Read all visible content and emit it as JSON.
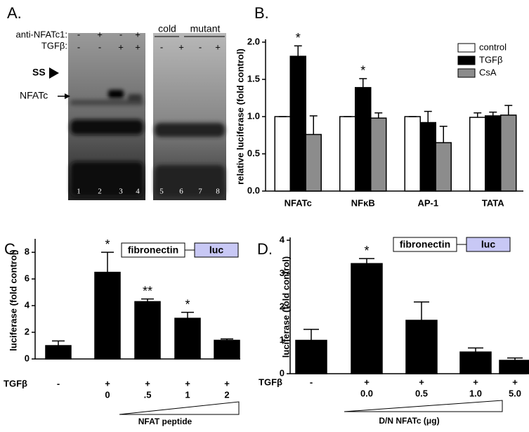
{
  "gel": {
    "panel_label": "A.",
    "rows": [
      {
        "label": "anti-NFATc1:",
        "marks": [
          "-",
          "+",
          "-",
          "+"
        ]
      },
      {
        "label": "TGFβ:",
        "marks": [
          "-",
          "-",
          "+",
          "+",
          "-",
          "+",
          "-",
          "+"
        ]
      }
    ],
    "probes": [
      "cold",
      "mutant"
    ],
    "bands": [
      "SS",
      "NFATc"
    ],
    "lanes": [
      "1",
      "2",
      "3",
      "4",
      "5",
      "6",
      "7",
      "8"
    ]
  },
  "chart_data": [
    {
      "type": "bar",
      "panel_label": "B.",
      "ylabel": "relative luciferase (fold control)",
      "categories": [
        "NFATc",
        "NFκB",
        "AP-1",
        "TATA"
      ],
      "series": [
        {
          "name": "control",
          "color": "#ffffff",
          "values": [
            1.0,
            1.0,
            1.0,
            0.99
          ],
          "errors": [
            0,
            0,
            0,
            0.06
          ],
          "annotations": [
            null,
            null,
            null,
            null
          ]
        },
        {
          "name": "TGFβ",
          "color": "#000000",
          "values": [
            1.81,
            1.39,
            0.92,
            1.01
          ],
          "errors": [
            0.14,
            0.12,
            0.15,
            0.05
          ],
          "annotations": [
            "*",
            "*",
            null,
            null
          ]
        },
        {
          "name": "CsA",
          "color": "#8c8c8c",
          "values": [
            0.76,
            0.98,
            0.65,
            1.02
          ],
          "errors": [
            0.25,
            0.07,
            0.22,
            0.13
          ],
          "annotations": [
            null,
            null,
            null,
            null
          ]
        }
      ],
      "ylim": [
        0,
        2.0
      ],
      "yticks": [
        {
          "value": 0,
          "label": "0.0"
        },
        0.5,
        {
          "value": 1,
          "label": "1.0"
        },
        1.5,
        {
          "value": 2,
          "label": "2.0"
        }
      ],
      "legend": "top-right"
    },
    {
      "type": "bar",
      "panel_label": "C.",
      "ylabel": "luciferase (fold control)",
      "row_label": "TGFβ",
      "categories": [
        "-",
        "+",
        "+",
        "+",
        "+"
      ],
      "doses": [
        null,
        "0",
        ".5",
        "1",
        "2"
      ],
      "xlabel": "NFAT peptide",
      "construct": [
        "fibronectin",
        "luc"
      ],
      "color": "#000000",
      "values": [
        1.0,
        6.5,
        4.3,
        3.05,
        1.4
      ],
      "errors": [
        0.35,
        1.5,
        0.2,
        0.45,
        0.1
      ],
      "annotations": [
        null,
        "*",
        "**",
        "*",
        null
      ],
      "ylim": [
        0,
        8.8
      ],
      "yticks": [
        0,
        2,
        4,
        6,
        8
      ]
    },
    {
      "type": "bar",
      "panel_label": "D.",
      "ylabel": "luciferase (fold control)",
      "row_label": "TGFβ",
      "categories": [
        "-",
        "+",
        "+",
        "+",
        "+"
      ],
      "doses": [
        null,
        "0.0",
        "0.5",
        "1.0",
        "5.0"
      ],
      "xlabel": "D/N NFATc (μg)",
      "construct": [
        "fibronectin",
        "luc"
      ],
      "color": "#000000",
      "values": [
        1.0,
        3.3,
        1.6,
        0.65,
        0.4
      ],
      "errors": [
        0.33,
        0.15,
        0.55,
        0.12,
        0.07
      ],
      "annotations": [
        null,
        "*",
        null,
        null,
        null
      ],
      "ylim": [
        0,
        4
      ],
      "yticks": [
        0,
        1,
        2,
        3,
        4
      ]
    }
  ]
}
